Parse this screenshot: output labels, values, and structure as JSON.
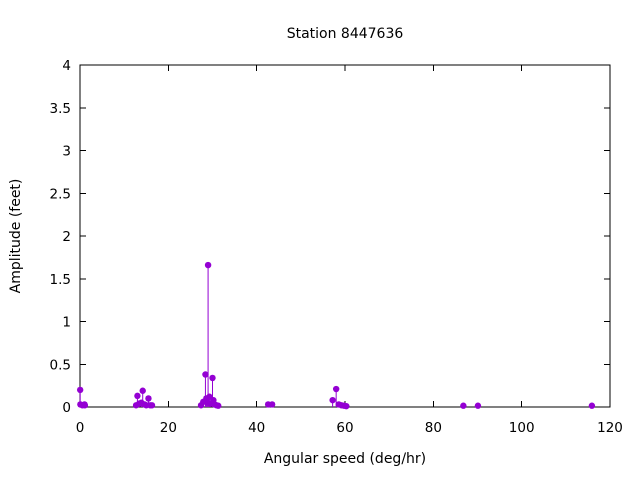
{
  "chart_data": {
    "type": "stem",
    "title": "Station 8447636",
    "xlabel": "Angular speed (deg/hr)",
    "ylabel": "Amplitude (feet)",
    "xlim": [
      0,
      120
    ],
    "ylim": [
      0,
      4
    ],
    "xticks": [
      0,
      20,
      40,
      60,
      80,
      100,
      120
    ],
    "yticks": [
      0,
      0.5,
      1,
      1.5,
      2,
      2.5,
      3,
      3.5,
      4
    ],
    "grid": false,
    "legend": "none",
    "point_color": "#9400d3",
    "frame_color": "#000000",
    "points": [
      {
        "x": 0.04,
        "y": 0.2
      },
      {
        "x": 0.08,
        "y": 0.03
      },
      {
        "x": 0.54,
        "y": 0.02
      },
      {
        "x": 1.02,
        "y": 0.03
      },
      {
        "x": 1.1,
        "y": 0.02
      },
      {
        "x": 12.7,
        "y": 0.02
      },
      {
        "x": 13.0,
        "y": 0.13
      },
      {
        "x": 13.4,
        "y": 0.04
      },
      {
        "x": 13.9,
        "y": 0.05
      },
      {
        "x": 14.2,
        "y": 0.19
      },
      {
        "x": 14.6,
        "y": 0.03
      },
      {
        "x": 15.0,
        "y": 0.02
      },
      {
        "x": 15.5,
        "y": 0.1
      },
      {
        "x": 15.9,
        "y": 0.02
      },
      {
        "x": 16.3,
        "y": 0.02
      },
      {
        "x": 27.4,
        "y": 0.02
      },
      {
        "x": 27.9,
        "y": 0.06
      },
      {
        "x": 28.4,
        "y": 0.38
      },
      {
        "x": 28.6,
        "y": 0.1
      },
      {
        "x": 28.9,
        "y": 0.05
      },
      {
        "x": 29.0,
        "y": 1.66
      },
      {
        "x": 29.3,
        "y": 0.12
      },
      {
        "x": 29.6,
        "y": 0.04
      },
      {
        "x": 30.0,
        "y": 0.34
      },
      {
        "x": 30.2,
        "y": 0.08
      },
      {
        "x": 30.5,
        "y": 0.03
      },
      {
        "x": 30.9,
        "y": 0.02
      },
      {
        "x": 31.3,
        "y": 0.015
      },
      {
        "x": 42.6,
        "y": 0.03
      },
      {
        "x": 43.5,
        "y": 0.03
      },
      {
        "x": 57.2,
        "y": 0.08
      },
      {
        "x": 58.0,
        "y": 0.21
      },
      {
        "x": 58.6,
        "y": 0.03
      },
      {
        "x": 59.2,
        "y": 0.02
      },
      {
        "x": 59.8,
        "y": 0.015
      },
      {
        "x": 60.3,
        "y": 0.01
      },
      {
        "x": 86.8,
        "y": 0.015
      },
      {
        "x": 90.1,
        "y": 0.015
      },
      {
        "x": 115.9,
        "y": 0.015
      }
    ]
  }
}
